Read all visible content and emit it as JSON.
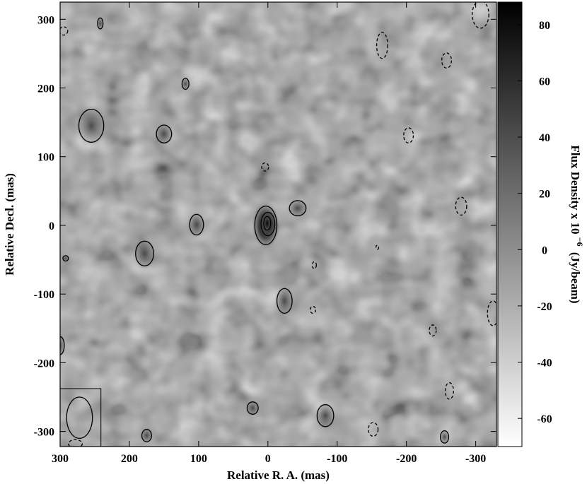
{
  "chart_data": {
    "type": "heatmap",
    "xlabel": "Relative R. A. (mas)",
    "ylabel": "Relative Decl. (mas)",
    "colorbar_label_main": "Flux Density x 10",
    "colorbar_label_exponent": "−6",
    "colorbar_label_unit": "(Jy/beam)",
    "xlim": [
      300,
      -330
    ],
    "ylim": [
      -322,
      325
    ],
    "x_ticks": [
      {
        "value": 300,
        "label": "300"
      },
      {
        "value": 200,
        "label": "200"
      },
      {
        "value": 100,
        "label": "100"
      },
      {
        "value": 0,
        "label": "0"
      },
      {
        "value": -100,
        "label": "-100"
      },
      {
        "value": -200,
        "label": "-200"
      },
      {
        "value": -300,
        "label": "-300"
      }
    ],
    "y_ticks": [
      {
        "value": 300,
        "label": "300"
      },
      {
        "value": 200,
        "label": "200"
      },
      {
        "value": 100,
        "label": "100"
      },
      {
        "value": 0,
        "label": "0"
      },
      {
        "value": -100,
        "label": "-100"
      },
      {
        "value": -200,
        "label": "-200"
      },
      {
        "value": -300,
        "label": "-300"
      }
    ],
    "colorbar_range": [
      -70,
      88
    ],
    "colorbar_ticks": [
      {
        "value": 80,
        "label": "80"
      },
      {
        "value": 60,
        "label": "60"
      },
      {
        "value": 40,
        "label": "40"
      },
      {
        "value": 20,
        "label": "20"
      },
      {
        "value": 0,
        "label": "0"
      },
      {
        "value": -20,
        "label": "-20"
      },
      {
        "value": -40,
        "label": "-40"
      },
      {
        "value": -60,
        "label": "-60"
      }
    ],
    "colormap": "white-to-black (low flux light, high flux dark)",
    "grid": false,
    "beam": {
      "ra": 272,
      "dec": -280,
      "major_mas": 45,
      "minor_mas": 28,
      "pa_deg": 0
    },
    "positive_contours": [
      {
        "ra": 3,
        "dec": 0,
        "rx": 16,
        "ry": 28
      },
      {
        "ra": 0,
        "dec": 2,
        "rx": 10,
        "ry": 17
      },
      {
        "ra": 1,
        "dec": 3,
        "rx": 5,
        "ry": 10
      },
      {
        "ra": -43,
        "dec": 25,
        "rx": 12,
        "ry": 11
      },
      {
        "ra": 255,
        "dec": 145,
        "rx": 18,
        "ry": 24
      },
      {
        "ra": 150,
        "dec": 133,
        "rx": 11,
        "ry": 13
      },
      {
        "ra": 119,
        "dec": 206,
        "rx": 5,
        "ry": 8
      },
      {
        "ra": 242,
        "dec": 294,
        "rx": 4,
        "ry": 8
      },
      {
        "ra": 103,
        "dec": 1,
        "rx": 10,
        "ry": 15
      },
      {
        "ra": 178,
        "dec": -41,
        "rx": 13,
        "ry": 18
      },
      {
        "ra": 292,
        "dec": -48,
        "rx": 4,
        "ry": 4
      },
      {
        "ra": -24,
        "dec": -110,
        "rx": 11,
        "ry": 18
      },
      {
        "ra": 300,
        "dec": -175,
        "rx": 6,
        "ry": 13
      },
      {
        "ra": 22,
        "dec": -266,
        "rx": 8,
        "ry": 9
      },
      {
        "ra": -83,
        "dec": -277,
        "rx": 12,
        "ry": 16
      },
      {
        "ra": 175,
        "dec": -306,
        "rx": 7,
        "ry": 9
      },
      {
        "ra": -255,
        "dec": -308,
        "rx": 6,
        "ry": 9
      }
    ],
    "negative_contours": [
      {
        "ra": 295,
        "dec": 283,
        "rx": 6,
        "ry": 6
      },
      {
        "ra": -165,
        "dec": 262,
        "rx": 8,
        "ry": 19
      },
      {
        "ra": -258,
        "dec": 240,
        "rx": 7,
        "ry": 11
      },
      {
        "ra": -203,
        "dec": 131,
        "rx": 7,
        "ry": 11
      },
      {
        "ra": 4,
        "dec": 85,
        "rx": 5,
        "ry": 6
      },
      {
        "ra": -279,
        "dec": 28,
        "rx": 8,
        "ry": 13
      },
      {
        "ra": -158,
        "dec": -32,
        "rx": 2,
        "ry": 3
      },
      {
        "ra": -67,
        "dec": -58,
        "rx": 3,
        "ry": 5
      },
      {
        "ra": -65,
        "dec": -123,
        "rx": 4,
        "ry": 5
      },
      {
        "ra": -325,
        "dec": -128,
        "rx": 8,
        "ry": 18
      },
      {
        "ra": -238,
        "dec": -153,
        "rx": 5,
        "ry": 8
      },
      {
        "ra": -262,
        "dec": -241,
        "rx": 6,
        "ry": 12
      },
      {
        "ra": -152,
        "dec": -297,
        "rx": 7,
        "ry": 10
      },
      {
        "ra": -307,
        "dec": 307,
        "rx": 12,
        "ry": 20
      },
      {
        "ra": 278,
        "dec": -318,
        "rx": 10,
        "ry": 6
      }
    ]
  }
}
